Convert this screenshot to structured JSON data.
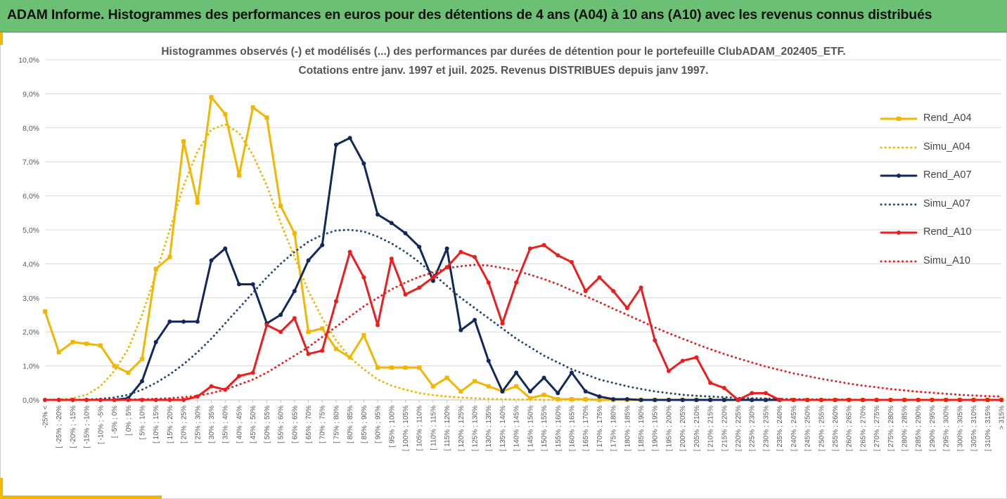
{
  "header": {
    "title": "ADAM Informe. Histogrammes des performances en euros pour des détentions de 4 ans (A04) à 10 ans (A10) avec les revenus connus distribués"
  },
  "chart_data": {
    "type": "line",
    "title": "Histogrammes observés (-) et modélisés (...) des performances par durées de détention pour le portefeuille ClubADAM_202405_ETF.",
    "subtitle": "Cotations entre janv. 1997 et juil. 2025. Revenus DISTRIBUES depuis janv 1997.",
    "xlabel": "",
    "ylabel": "",
    "ylim": [
      0,
      10
    ],
    "yticks": [
      "0,0%",
      "1,0%",
      "2,0%",
      "3,0%",
      "4,0%",
      "5,0%",
      "6,0%",
      "7,0%",
      "8,0%",
      "9,0%",
      "10,0%"
    ],
    "grid": "horizontal",
    "legend_position": "right",
    "categories": [
      "-25% <",
      "[ -25% ; -20%",
      "[ -20% ; -15%",
      "[ -15% ; -10%",
      "[ -10% ; -5%",
      "[ -5% ; 0%",
      "[ 0% ; 5%",
      "[ 5% ; 10%",
      "[ 10% ; 15%",
      "[ 15% ; 20%",
      "[ 20% ; 25%",
      "[ 25% ; 30%",
      "[ 30% ; 35%",
      "[ 35% ; 40%",
      "[ 40% ; 45%",
      "[ 45% ; 50%",
      "[ 50% ; 55%",
      "[ 55% ; 60%",
      "[ 60% ; 65%",
      "[ 65% ; 70%",
      "[ 70% ; 75%",
      "[ 75% ; 80%",
      "[ 80% ; 85%",
      "[ 85% ; 90%",
      "[ 90% ; 95%",
      "[ 95% ; 100%",
      "[ 100% ; 105%",
      "[ 105% ; 110%",
      "[ 110% ; 115%",
      "[ 115% ; 120%",
      "[ 120% ; 125%",
      "[ 125% ; 130%",
      "[ 130% ; 135%",
      "[ 135% ; 140%",
      "[ 140% ; 145%",
      "[ 145% ; 150%",
      "[ 150% ; 155%",
      "[ 155% ; 160%",
      "[ 160% ; 165%",
      "[ 165% ; 170%",
      "[ 170% ; 175%",
      "[ 175% ; 180%",
      "[ 180% ; 185%",
      "[ 185% ; 190%",
      "[ 190% ; 195%",
      "[ 195% ; 200%",
      "[ 200% ; 205%",
      "[ 205% ; 210%",
      "[ 210% ; 215%",
      "[ 215% ; 220%",
      "[ 220% ; 225%",
      "[ 225% ; 230%",
      "[ 230% ; 235%",
      "[ 235% ; 240%",
      "[ 240% ; 245%",
      "[ 245% ; 250%",
      "[ 250% ; 255%",
      "[ 255% ; 260%",
      "[ 260% ; 265%",
      "[ 265% ; 270%",
      "[ 270% ; 275%",
      "[ 275% ; 280%",
      "[ 280% ; 285%",
      "[ 285% ; 290%",
      "[ 290% ; 295%",
      "[ 295% ; 300%",
      "[ 300% ; 305%",
      "[ 305% ; 310%",
      "[ 310% ; 315%",
      "> 315%"
    ],
    "series": [
      {
        "name": "Rend_A04",
        "style": "solid",
        "marker": "square",
        "color": "#f2b600",
        "values": [
          2.6,
          1.4,
          1.7,
          1.65,
          1.6,
          1.0,
          0.8,
          1.2,
          3.85,
          4.2,
          7.6,
          5.8,
          8.9,
          8.4,
          6.6,
          8.6,
          8.3,
          5.7,
          4.9,
          2.0,
          2.1,
          1.5,
          1.25,
          1.9,
          0.95,
          0.95,
          0.95,
          0.95,
          0.4,
          0.65,
          0.25,
          0.55,
          0.4,
          0.25,
          0.4,
          0.05,
          0.15,
          0.02,
          0.02,
          0.02,
          0.0,
          0.0,
          0.0,
          0.0,
          0.0,
          0.0,
          0.0,
          0.0,
          0.0,
          0.0,
          0.0,
          0.0,
          0.0,
          0.0,
          0.0,
          0.0,
          0.0,
          0.0,
          0.0,
          0.0,
          0.0,
          0.0,
          0.0,
          0.0,
          0.0,
          0.0,
          0.0,
          0.0,
          0.0,
          0.0
        ]
      },
      {
        "name": "Simu_A04",
        "style": "dotted",
        "marker": "none",
        "color": "#f2b600",
        "values": [
          0.0,
          0.02,
          0.05,
          0.15,
          0.4,
          0.85,
          1.5,
          2.5,
          3.7,
          5.0,
          6.3,
          7.3,
          7.95,
          8.1,
          7.85,
          7.2,
          6.3,
          5.2,
          4.2,
          3.2,
          2.4,
          1.75,
          1.25,
          0.9,
          0.6,
          0.42,
          0.3,
          0.2,
          0.14,
          0.1,
          0.07,
          0.05,
          0.03,
          0.02,
          0.01,
          0.01,
          0.0,
          0.0,
          0.0,
          0.0,
          0.0,
          0.0,
          0.0,
          0.0,
          0.0,
          0.0,
          0.0,
          0.0,
          0.0,
          0.0,
          0.0,
          0.0,
          0.0,
          0.0,
          0.0,
          0.0,
          0.0,
          0.0,
          0.0,
          0.0,
          0.0,
          0.0,
          0.0,
          0.0,
          0.0,
          0.0,
          0.0,
          0.0,
          0.0,
          0.0
        ]
      },
      {
        "name": "Rend_A07",
        "style": "solid",
        "marker": "circle",
        "color": "#12285c",
        "values": [
          0.0,
          0.0,
          0.0,
          0.0,
          0.0,
          0.0,
          0.05,
          0.55,
          1.7,
          2.3,
          2.3,
          2.3,
          4.1,
          4.45,
          3.4,
          3.4,
          2.25,
          2.5,
          3.2,
          4.1,
          4.55,
          7.5,
          7.7,
          6.95,
          5.45,
          5.2,
          4.9,
          4.5,
          3.5,
          4.45,
          2.05,
          2.35,
          1.15,
          0.25,
          0.8,
          0.25,
          0.65,
          0.2,
          0.8,
          0.25,
          0.1,
          0.02,
          0.02,
          0.0,
          0.0,
          0.0,
          0.0,
          0.0,
          0.0,
          0.0,
          0.0,
          0.0,
          0.0,
          0.0,
          0.0,
          0.0,
          0.0,
          0.0,
          0.0,
          0.0,
          0.0,
          0.0,
          0.0,
          0.0,
          0.0,
          0.0,
          0.0,
          0.0,
          0.0,
          0.0
        ]
      },
      {
        "name": "Simu_A07",
        "style": "dotted",
        "marker": "none",
        "color": "#264b6e",
        "values": [
          0.0,
          0.0,
          0.0,
          0.01,
          0.03,
          0.07,
          0.15,
          0.3,
          0.5,
          0.75,
          1.05,
          1.4,
          1.8,
          2.25,
          2.7,
          3.15,
          3.6,
          4.0,
          4.35,
          4.65,
          4.85,
          4.98,
          5.0,
          4.95,
          4.8,
          4.6,
          4.35,
          4.05,
          3.7,
          3.35,
          3.0,
          2.7,
          2.4,
          2.1,
          1.8,
          1.55,
          1.3,
          1.1,
          0.9,
          0.75,
          0.6,
          0.5,
          0.4,
          0.32,
          0.25,
          0.2,
          0.15,
          0.12,
          0.1,
          0.08,
          0.06,
          0.05,
          0.04,
          0.03,
          0.02,
          0.02,
          0.01,
          0.01,
          0.01,
          0.0,
          0.0,
          0.0,
          0.0,
          0.0,
          0.0,
          0.0,
          0.0,
          0.0,
          0.0,
          0.0
        ]
      },
      {
        "name": "Rend_A10",
        "style": "solid",
        "marker": "circle",
        "color": "#ee1c1c",
        "values": [
          0.0,
          0.0,
          0.0,
          0.0,
          0.0,
          0.0,
          0.0,
          0.0,
          0.0,
          0.0,
          0.0,
          0.1,
          0.4,
          0.3,
          0.7,
          0.8,
          2.2,
          2.0,
          2.4,
          1.35,
          1.45,
          2.9,
          4.35,
          3.6,
          2.2,
          4.15,
          3.1,
          3.3,
          3.6,
          3.9,
          4.35,
          4.2,
          3.45,
          2.25,
          3.45,
          4.45,
          4.55,
          4.25,
          4.05,
          3.2,
          3.6,
          3.2,
          2.7,
          3.3,
          1.75,
          0.85,
          1.15,
          1.25,
          0.5,
          0.35,
          0.0,
          0.2,
          0.2,
          0.0,
          0.0,
          0.0,
          0.0,
          0.0,
          0.0,
          0.0,
          0.0,
          0.0,
          0.0,
          0.0,
          0.0,
          0.0,
          0.0,
          0.0,
          0.0,
          0.0
        ]
      },
      {
        "name": "Simu_A10",
        "style": "dotted",
        "marker": "none",
        "color": "#ee1c1c",
        "values": [
          0.0,
          0.0,
          0.0,
          0.0,
          0.0,
          0.0,
          0.01,
          0.02,
          0.03,
          0.05,
          0.08,
          0.12,
          0.2,
          0.3,
          0.45,
          0.6,
          0.8,
          1.05,
          1.3,
          1.55,
          1.85,
          2.15,
          2.45,
          2.75,
          3.0,
          3.25,
          3.45,
          3.62,
          3.75,
          3.87,
          3.93,
          3.97,
          3.95,
          3.88,
          3.8,
          3.68,
          3.55,
          3.4,
          3.22,
          3.05,
          2.87,
          2.68,
          2.5,
          2.32,
          2.13,
          1.96,
          1.8,
          1.64,
          1.49,
          1.35,
          1.22,
          1.1,
          0.98,
          0.88,
          0.78,
          0.7,
          0.62,
          0.55,
          0.48,
          0.42,
          0.37,
          0.32,
          0.28,
          0.24,
          0.21,
          0.18,
          0.15,
          0.13,
          0.11,
          0.1
        ]
      }
    ]
  }
}
